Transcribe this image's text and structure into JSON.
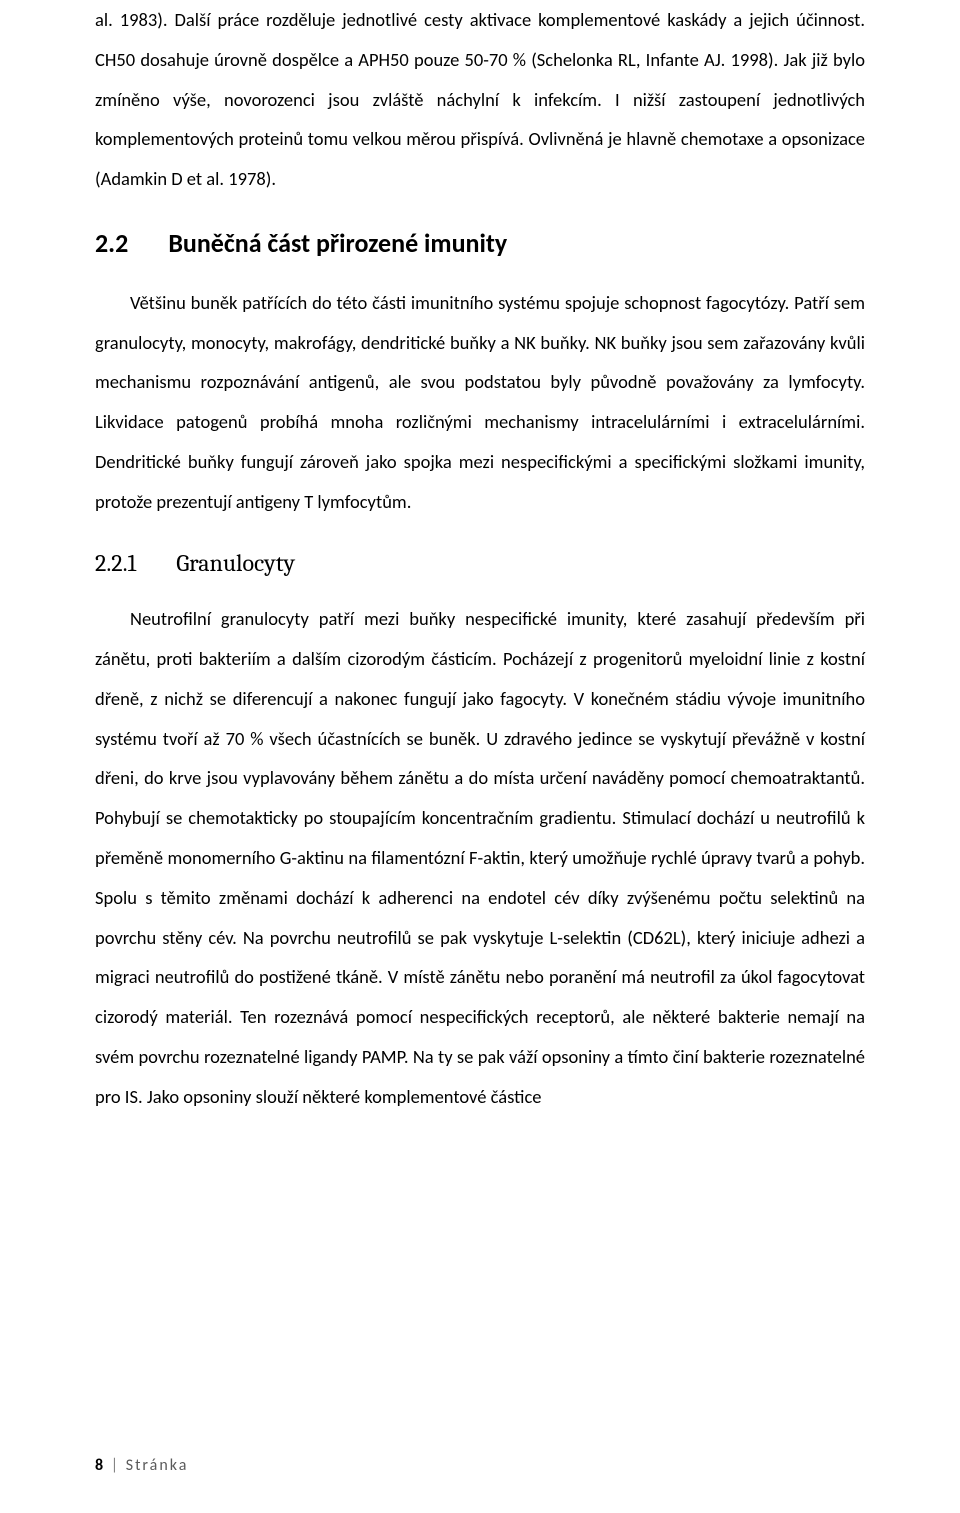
{
  "paragraphs": {
    "p1": "al. 1983). Další práce rozděluje jednotlivé cesty aktivace komplementové kaskády a jejich účinnost. CH50 dosahuje úrovně dospělce a APH50 pouze 50-70 % (Schelonka RL, Infante AJ. 1998). Jak již bylo zmíněno výše, novorozenci jsou zvláště náchylní k infekcím. I nižší zastoupení jednotlivých komplementových proteinů tomu velkou měrou přispívá. Ovlivněná je hlavně chemotaxe a opsonizace (Adamkin D et al. 1978).",
    "p2": "Většinu buněk patřících do této části imunitního systému spojuje schopnost fagocytózy. Patří sem granulocyty, monocyty, makrofágy, dendritické buňky a NK buňky. NK buňky jsou sem zařazovány kvůli mechanismu rozpoznávání antigenů, ale svou podstatou byly původně považovány za lymfocyty. Likvidace patogenů probíhá mnoha rozličnými mechanismy intracelulárními i extracelulárními. Dendritické buňky fungují zároveň jako spojka mezi nespecifickými a specifickými složkami imunity, protože prezentují antigeny T lymfocytům.",
    "p3": "Neutrofilní granulocyty patří mezi buňky nespecifické imunity, které zasahují především při zánětu, proti bakteriím a dalším cizorodým částicím. Pocházejí z progenitorů myeloidní linie z kostní dřeně, z nichž se diferencují a nakonec fungují jako fagocyty. V konečném stádiu vývoje imunitního systému tvoří až 70 % všech účastnících se buněk. U zdravého jedince se vyskytují převážně v kostní dřeni, do krve jsou vyplavovány během zánětu a do místa určení naváděny pomocí chemoatraktantů. Pohybují se chemotakticky po stoupajícím koncentračním gradientu. Stimulací dochází u neutrofilů k přeměně monomerního G-aktinu na filamentózní F-aktin, který umožňuje rychlé úpravy tvarů a pohyb. Spolu s těmito změnami dochází k adherenci na endotel cév díky zvýšenému počtu selektinů na povrchu stěny cév. Na povrchu neutrofilů se pak vyskytuje L-selektin (CD62L), který iniciuje adhezi a migraci neutrofilů do postižené tkáně. V místě zánětu nebo poranění má neutrofil za úkol fagocytovat cizorodý materiál. Ten rozeznává pomocí nespecifických receptorů, ale některé bakterie nemají na svém povrchu rozeznatelné ligandy PAMP. Na ty se pak váží opsoniny a tímto činí bakterie rozeznatelné pro IS. Jako opsoniny slouží některé komplementové částice"
  },
  "headings": {
    "h2": {
      "num": "2.2",
      "text": "Buněčná část přirozené imunity"
    },
    "h3": {
      "num": "2.2.1",
      "text": "Granulocyty"
    }
  },
  "footer": {
    "page_num": "8",
    "label": "Stránka"
  }
}
